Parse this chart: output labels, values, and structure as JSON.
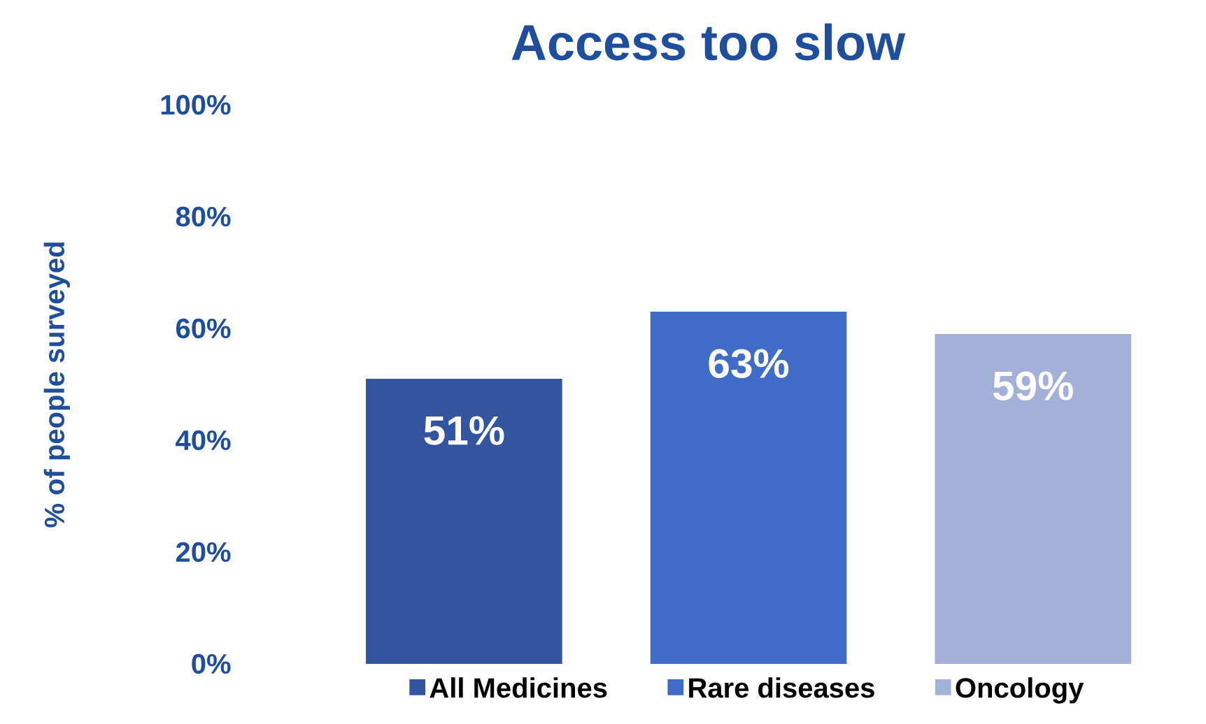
{
  "chart_data": {
    "type": "bar",
    "title": "Access too slow",
    "ylabel": "% of people surveyed",
    "categories": [
      null
    ],
    "series": [
      {
        "name": "All Medicines",
        "color": "#33549f",
        "values": [
          51
        ],
        "value_labels": [
          "51%"
        ]
      },
      {
        "name": "Rare diseases",
        "color": "#3f6cc6",
        "values": [
          63
        ],
        "value_labels": [
          "63%"
        ]
      },
      {
        "name": "Oncology",
        "color": "#a3b1d9",
        "values": [
          59
        ],
        "value_labels": [
          "59%"
        ]
      }
    ],
    "ylim": [
      0,
      100
    ],
    "yticks": [
      {
        "value": 0,
        "label": "0%"
      },
      {
        "value": 20,
        "label": "20%"
      },
      {
        "value": 40,
        "label": "40%"
      },
      {
        "value": 60,
        "label": "60%"
      },
      {
        "value": 80,
        "label": "80%"
      },
      {
        "value": 100,
        "label": "100%"
      }
    ],
    "grid": false,
    "legend": "bottom"
  }
}
